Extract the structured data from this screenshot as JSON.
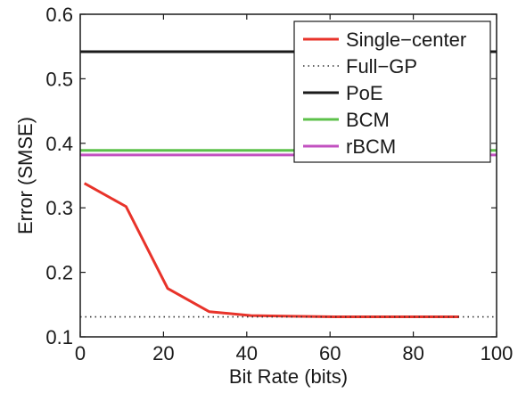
{
  "chart_data": {
    "type": "line",
    "xlabel": "Bit Rate (bits)",
    "ylabel": "Error (SMSE)",
    "xlim": [
      0,
      100
    ],
    "ylim": [
      0.1,
      0.6
    ],
    "xticks": [
      0,
      20,
      40,
      60,
      80,
      100
    ],
    "yticks": [
      0.1,
      0.2,
      0.3,
      0.4,
      0.5,
      0.6
    ],
    "xtick_labels": [
      "0",
      "20",
      "40",
      "60",
      "80",
      "100"
    ],
    "ytick_labels": [
      "0.1",
      "0.2",
      "0.3",
      "0.4",
      "0.5",
      "0.6"
    ],
    "grid": false,
    "legend_position": "top-right",
    "series": [
      {
        "name": "Single−center",
        "color": "#e8332a",
        "style": "solid",
        "x": [
          1,
          11,
          21,
          31,
          41,
          51,
          61,
          71,
          81,
          91
        ],
        "y": [
          0.338,
          0.302,
          0.175,
          0.139,
          0.133,
          0.132,
          0.131,
          0.131,
          0.131,
          0.131
        ]
      },
      {
        "name": "Full−GP",
        "color": "#333333",
        "style": "dotted",
        "x": [
          0,
          100
        ],
        "y": [
          0.131,
          0.131
        ]
      },
      {
        "name": "PoE",
        "color": "#1a1a1a",
        "style": "solid",
        "x": [
          0,
          100
        ],
        "y": [
          0.542,
          0.542
        ]
      },
      {
        "name": "BCM",
        "color": "#5cc14a",
        "style": "solid",
        "x": [
          0,
          100
        ],
        "y": [
          0.389,
          0.389
        ]
      },
      {
        "name": "rBCM",
        "color": "#c251c0",
        "style": "solid",
        "x": [
          0,
          100
        ],
        "y": [
          0.382,
          0.382
        ]
      }
    ]
  }
}
